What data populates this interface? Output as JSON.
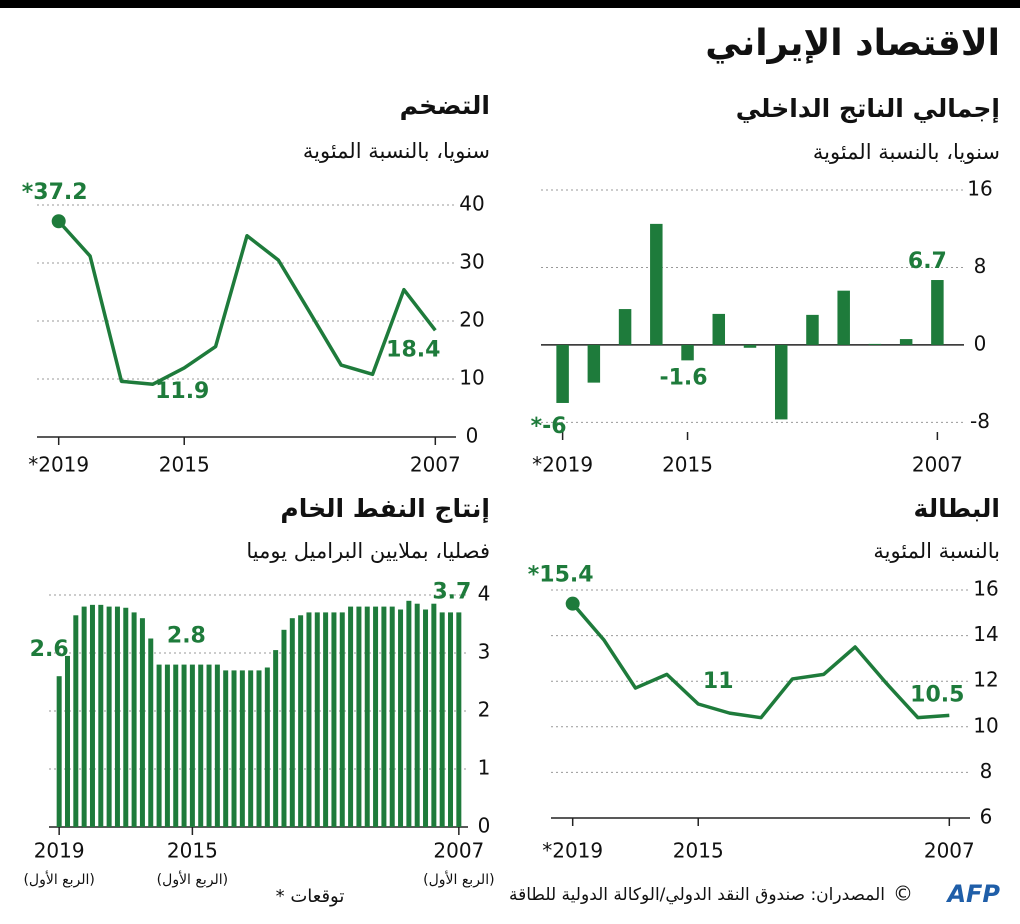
{
  "header": {
    "title": "الاقتصاد الإيراني"
  },
  "footer": {
    "note": "* توقعات",
    "source": "المصدران: صندوق النقد الدولي/الوكالة الدولية للطاقة",
    "copyright": "©",
    "logo": "AFP"
  },
  "chart_data": [
    {
      "type": "bar",
      "title": "إجمالي الناتج الداخلي",
      "subtitle": "سنويا، بالنسبة المئوية",
      "color": "#1e7b3b",
      "grid": true,
      "categories": [
        "*2019",
        null,
        null,
        null,
        "2015",
        null,
        null,
        null,
        null,
        null,
        null,
        null,
        "2007"
      ],
      "values": [
        -6,
        -3.9,
        3.7,
        12.5,
        -1.6,
        3.2,
        -0.3,
        -7.7,
        3.1,
        5.6,
        0.1,
        0.6,
        6.7
      ],
      "value_labels": [
        "*-6",
        null,
        null,
        null,
        "-1.6",
        null,
        null,
        null,
        null,
        null,
        null,
        null,
        "6.7"
      ],
      "ylim": [
        -9,
        16
      ],
      "yticks": [
        16,
        8,
        0,
        -8
      ]
    },
    {
      "type": "line",
      "title": "التضخم",
      "subtitle": "سنويا، بالنسبة المئوية",
      "color": "#1e7b3b",
      "grid": true,
      "categories": [
        "*2019",
        null,
        null,
        null,
        "2015",
        null,
        null,
        null,
        null,
        null,
        null,
        null,
        "2007"
      ],
      "values": [
        37.2,
        31.2,
        9.6,
        9.1,
        11.9,
        15.6,
        34.7,
        30.5,
        21.5,
        12.4,
        10.8,
        25.4,
        18.4
      ],
      "value_labels": [
        "*37.2",
        null,
        null,
        null,
        "11.9",
        null,
        null,
        null,
        null,
        null,
        null,
        null,
        "18.4"
      ],
      "ylim": [
        0,
        40
      ],
      "yticks": [
        40,
        30,
        20,
        10,
        0
      ]
    },
    {
      "type": "line",
      "title": "البطالة",
      "subtitle": "بالنسبة المئوية",
      "color": "#1e7b3b",
      "grid": true,
      "categories": [
        "*2019",
        null,
        null,
        null,
        "2015",
        null,
        null,
        null,
        null,
        null,
        null,
        null,
        "2007"
      ],
      "values": [
        15.4,
        13.8,
        11.7,
        12.3,
        11,
        10.6,
        10.4,
        12.1,
        12.3,
        13.5,
        11.9,
        10.4,
        10.5
      ],
      "value_labels": [
        "*15.4",
        null,
        null,
        null,
        "11",
        null,
        null,
        null,
        null,
        null,
        null,
        null,
        "10.5"
      ],
      "ylim": [
        6,
        16
      ],
      "yticks": [
        16,
        14,
        12,
        10,
        8,
        6
      ]
    },
    {
      "type": "bar",
      "title": "إنتاج النفط الخام",
      "subtitle": "فصليا، بملايين البراميل يوميا",
      "color": "#1e7b3b",
      "grid": true,
      "x_tick_note": "(الربع الأول)",
      "categories": [
        "2019",
        null,
        null,
        null,
        null,
        null,
        null,
        null,
        null,
        null,
        null,
        null,
        null,
        null,
        null,
        null,
        "2015",
        null,
        null,
        null,
        null,
        null,
        null,
        null,
        null,
        null,
        null,
        null,
        null,
        null,
        null,
        null,
        null,
        null,
        null,
        null,
        null,
        null,
        null,
        null,
        null,
        null,
        null,
        null,
        null,
        null,
        null,
        null,
        "2007"
      ],
      "values": [
        2.6,
        2.95,
        3.65,
        3.8,
        3.83,
        3.83,
        3.8,
        3.8,
        3.78,
        3.7,
        3.6,
        3.25,
        2.8,
        2.8,
        2.8,
        2.8,
        2.8,
        2.8,
        2.8,
        2.8,
        2.7,
        2.7,
        2.7,
        2.7,
        2.7,
        2.75,
        3.05,
        3.4,
        3.6,
        3.65,
        3.7,
        3.7,
        3.7,
        3.7,
        3.7,
        3.8,
        3.8,
        3.8,
        3.8,
        3.8,
        3.8,
        3.75,
        3.9,
        3.85,
        3.75,
        3.85,
        3.7,
        3.7,
        3.7
      ],
      "value_labels": [
        "2.6",
        null,
        null,
        null,
        null,
        null,
        null,
        null,
        null,
        null,
        null,
        null,
        null,
        null,
        null,
        null,
        "2.8",
        null,
        null,
        null,
        null,
        null,
        null,
        null,
        null,
        null,
        null,
        null,
        null,
        null,
        null,
        null,
        null,
        null,
        null,
        null,
        null,
        null,
        null,
        null,
        null,
        null,
        null,
        null,
        null,
        null,
        null,
        null,
        "3.7"
      ],
      "ylim": [
        0,
        4
      ],
      "yticks": [
        4,
        3,
        2,
        1,
        0
      ]
    }
  ]
}
